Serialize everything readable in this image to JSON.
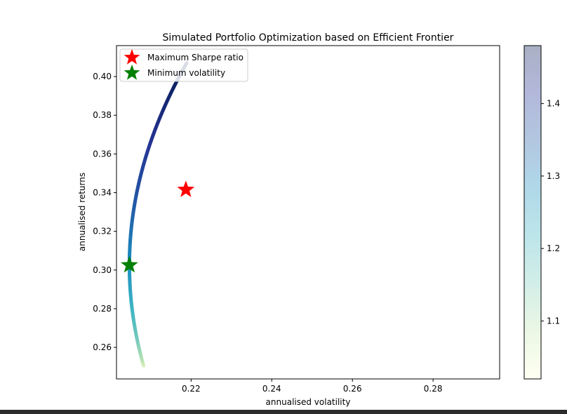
{
  "chart_data": {
    "type": "scatter",
    "title": "Simulated Portfolio Optimization based on Efficient Frontier",
    "xlabel": "annualised volatility",
    "ylabel": "annualised returns",
    "xlim": [
      0.2015,
      0.2965
    ],
    "ylim": [
      0.2437,
      0.416
    ],
    "x_ticks": [
      0.22,
      0.24,
      0.26,
      0.28
    ],
    "x_tick_labels": [
      "0.22",
      "0.24",
      "0.26",
      "0.28"
    ],
    "y_ticks": [
      0.26,
      0.28,
      0.3,
      0.32,
      0.34,
      0.36,
      0.38,
      0.4
    ],
    "y_tick_labels": [
      "0.26",
      "0.28",
      "0.30",
      "0.32",
      "0.34",
      "0.36",
      "0.38",
      "0.40"
    ],
    "frontier": {
      "min_volatility": 0.2047,
      "min_volatility_return": 0.3025,
      "curvature": 1300,
      "return_range": [
        0.2505,
        0.407
      ],
      "colormap": "YlGnBu",
      "colormap_stops": [
        "#ffffd9",
        "#c7e9b4",
        "#7fcdbb",
        "#41b6c4",
        "#1d91c0",
        "#225ea8",
        "#253494",
        "#081d58"
      ]
    },
    "colorbar": {
      "range": [
        1.02,
        1.48
      ],
      "ticks": [
        1.1,
        1.2,
        1.3,
        1.4
      ],
      "tick_labels": [
        "1.1",
        "1.2",
        "1.3",
        "1.4"
      ],
      "alpha": 0.35
    },
    "markers": [
      {
        "name": "Maximum Sharpe ratio",
        "x": 0.2187,
        "y": 0.3415,
        "color": "#ff0000"
      },
      {
        "name": "Minimum volatility",
        "x": 0.2047,
        "y": 0.3025,
        "color": "#008000"
      }
    ],
    "legend": {
      "position": "upper left",
      "entries": [
        "Maximum Sharpe ratio",
        "Minimum volatility"
      ]
    },
    "grid": false
  }
}
